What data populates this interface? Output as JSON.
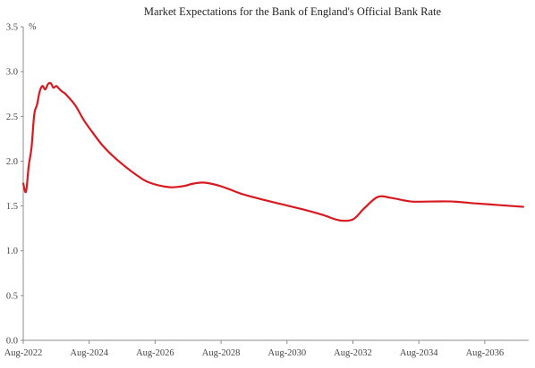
{
  "chart_data": {
    "type": "line",
    "title": "Market Expectations for the Bank of England's Official Bank Rate",
    "ylabel_unit": "%",
    "xlabel": "",
    "ylim": [
      0,
      3.5
    ],
    "y_ticks": [
      "0.0",
      "0.5",
      "1.0",
      "1.5",
      "2.0",
      "2.5",
      "3.0",
      "3.5"
    ],
    "x_range": [
      "2022-08",
      "2037-12"
    ],
    "x_ticks": [
      "Aug-2022",
      "Aug-2024",
      "Aug-2026",
      "Aug-2028",
      "Aug-2030",
      "Aug-2032",
      "Aug-2034",
      "Aug-2036"
    ],
    "grid": false,
    "legend": "none",
    "line_color": "#d71920",
    "series": [
      {
        "x": [
          "2022-08",
          "2022-09",
          "2022-10",
          "2022-11",
          "2022-12",
          "2023-01",
          "2023-02",
          "2023-03",
          "2023-04",
          "2023-05",
          "2023-06",
          "2023-07",
          "2023-08",
          "2023-09",
          "2023-10",
          "2023-11",
          "2023-12",
          "2024-03",
          "2024-06",
          "2024-09",
          "2025-01",
          "2025-06",
          "2026-01",
          "2026-06",
          "2027-01",
          "2027-06",
          "2027-10",
          "2028-02",
          "2028-08",
          "2029-03",
          "2029-10",
          "2030-06",
          "2031-02",
          "2031-09",
          "2032-03",
          "2032-08",
          "2032-12",
          "2033-05",
          "2033-10",
          "2034-05",
          "2035-01",
          "2035-08",
          "2036-04",
          "2037-01",
          "2037-10"
        ],
        "values": [
          1.75,
          1.66,
          1.95,
          2.15,
          2.52,
          2.63,
          2.78,
          2.84,
          2.8,
          2.86,
          2.87,
          2.82,
          2.84,
          2.81,
          2.78,
          2.76,
          2.73,
          2.62,
          2.46,
          2.33,
          2.17,
          2.02,
          1.85,
          1.76,
          1.71,
          1.72,
          1.75,
          1.76,
          1.72,
          1.64,
          1.58,
          1.52,
          1.46,
          1.4,
          1.34,
          1.35,
          1.47,
          1.6,
          1.59,
          1.55,
          1.55,
          1.55,
          1.53,
          1.51,
          1.49
        ]
      }
    ]
  }
}
